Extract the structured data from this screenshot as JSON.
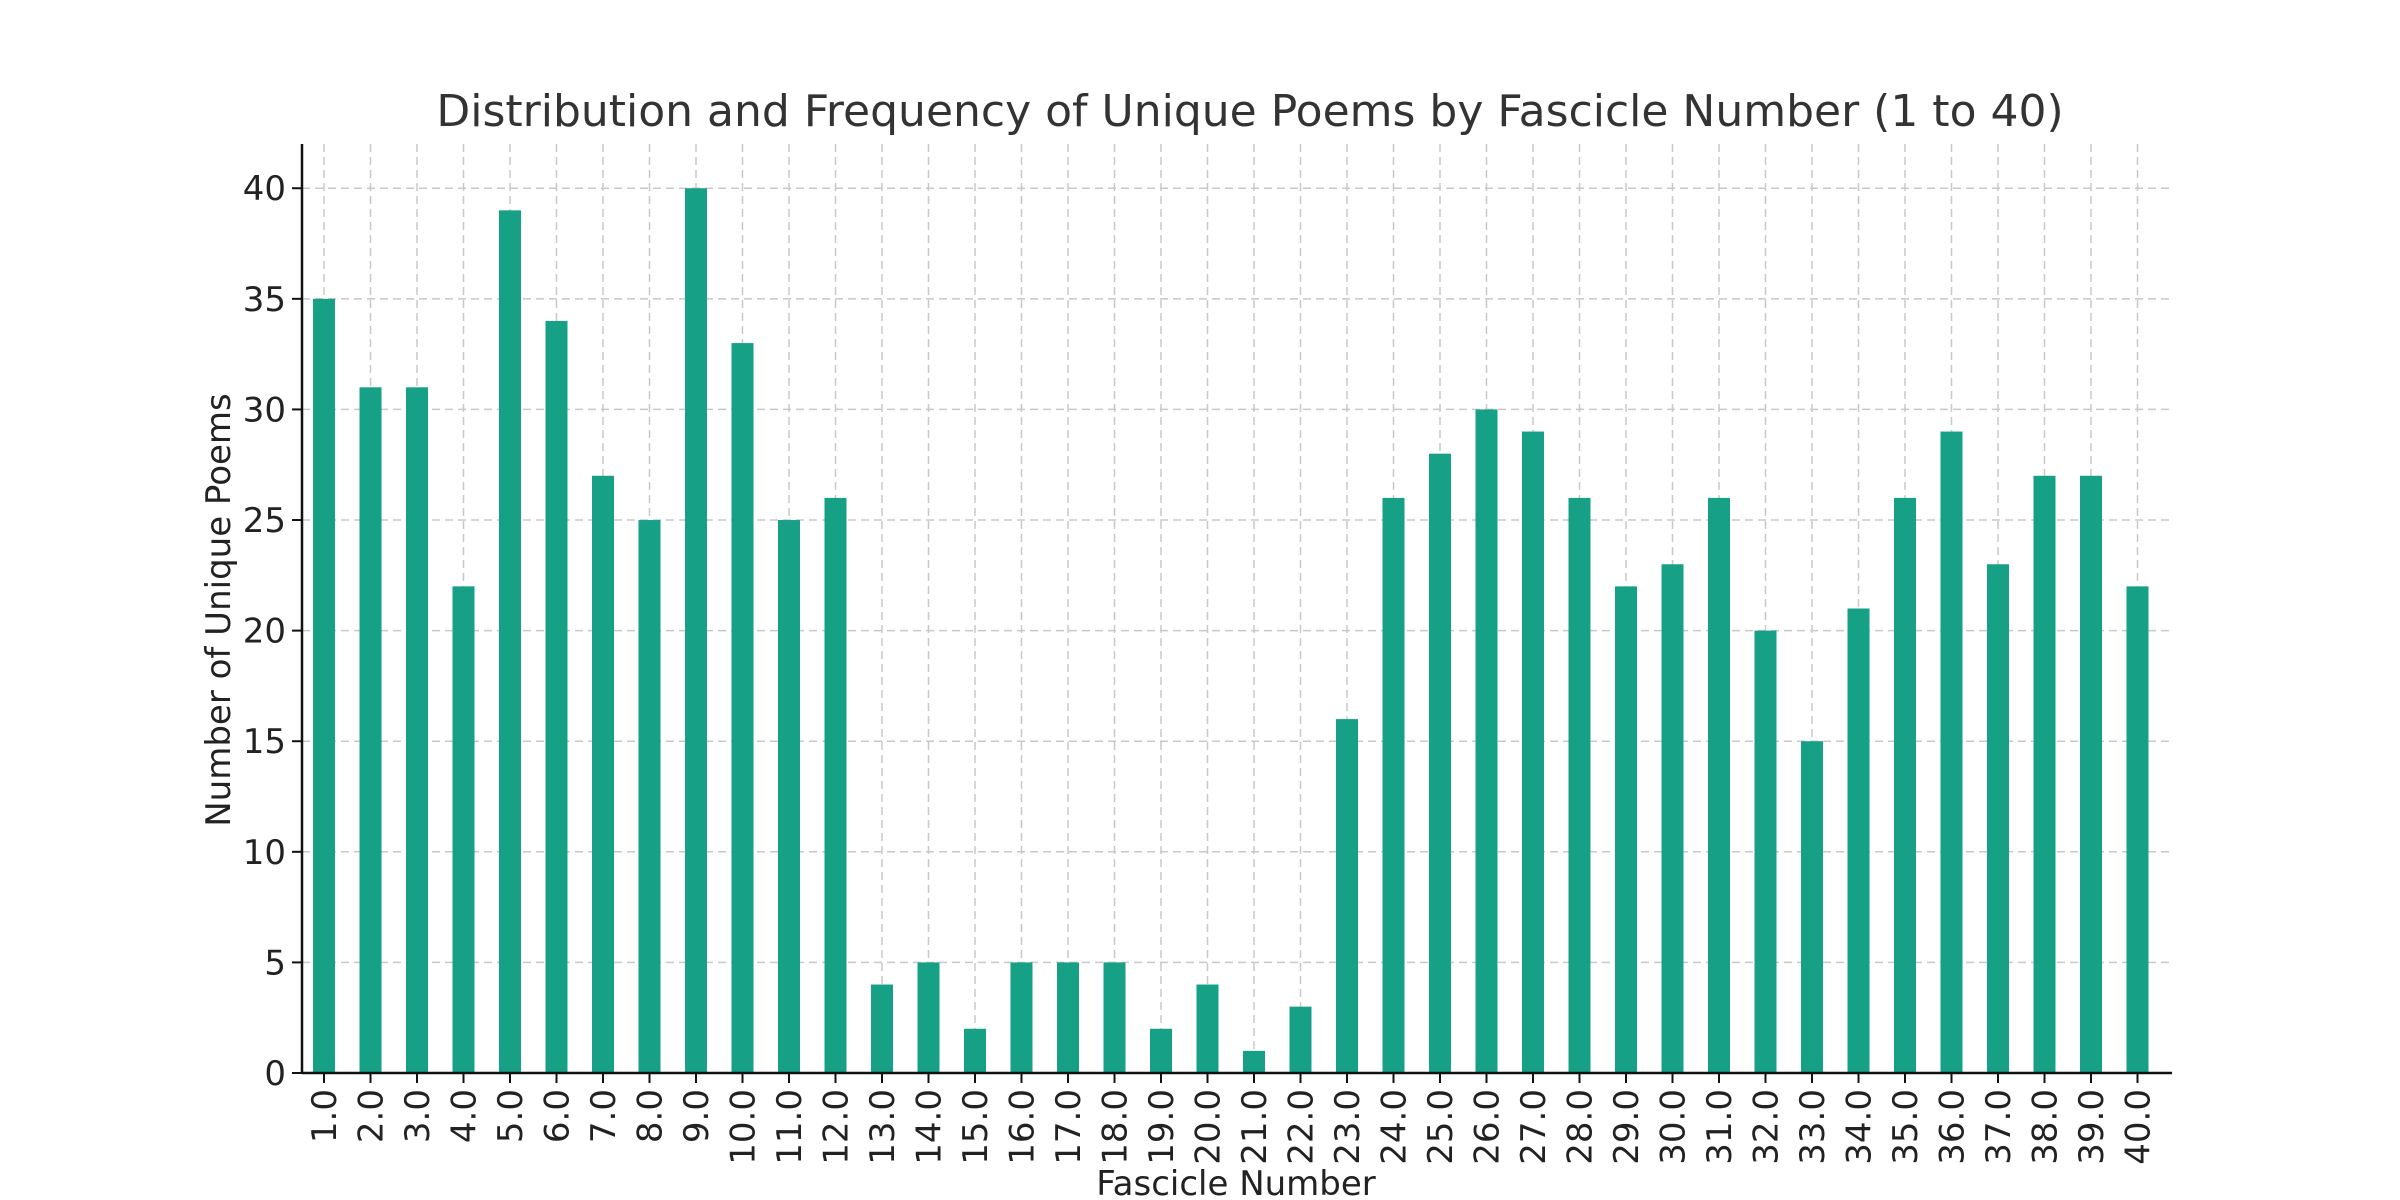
{
  "chart_data": {
    "type": "bar",
    "title": "Distribution and Frequency of Unique Poems by Fascicle Number (1 to 40)",
    "xlabel": "Fascicle Number",
    "ylabel": "Number of Unique Poems",
    "categories": [
      "1.0",
      "2.0",
      "3.0",
      "4.0",
      "5.0",
      "6.0",
      "7.0",
      "8.0",
      "9.0",
      "10.0",
      "11.0",
      "12.0",
      "13.0",
      "14.0",
      "15.0",
      "16.0",
      "17.0",
      "18.0",
      "19.0",
      "20.0",
      "21.0",
      "22.0",
      "23.0",
      "24.0",
      "25.0",
      "26.0",
      "27.0",
      "28.0",
      "29.0",
      "30.0",
      "31.0",
      "32.0",
      "33.0",
      "34.0",
      "35.0",
      "36.0",
      "37.0",
      "38.0",
      "39.0",
      "40.0"
    ],
    "values": [
      35,
      31,
      31,
      22,
      39,
      34,
      27,
      25,
      40,
      33,
      25,
      26,
      4,
      5,
      2,
      5,
      5,
      5,
      2,
      4,
      1,
      3,
      16,
      26,
      28,
      30,
      29,
      26,
      22,
      23,
      26,
      20,
      15,
      21,
      26,
      29,
      23,
      27,
      27,
      22
    ],
    "ylim": [
      0,
      42
    ],
    "yticks": [
      0,
      5,
      10,
      15,
      20,
      25,
      30,
      35,
      40
    ],
    "ytick_labels": [
      "0",
      "5",
      "10",
      "15",
      "20",
      "25",
      "30",
      "35",
      "40"
    ],
    "grid": true,
    "bar_color": "#16a085"
  }
}
